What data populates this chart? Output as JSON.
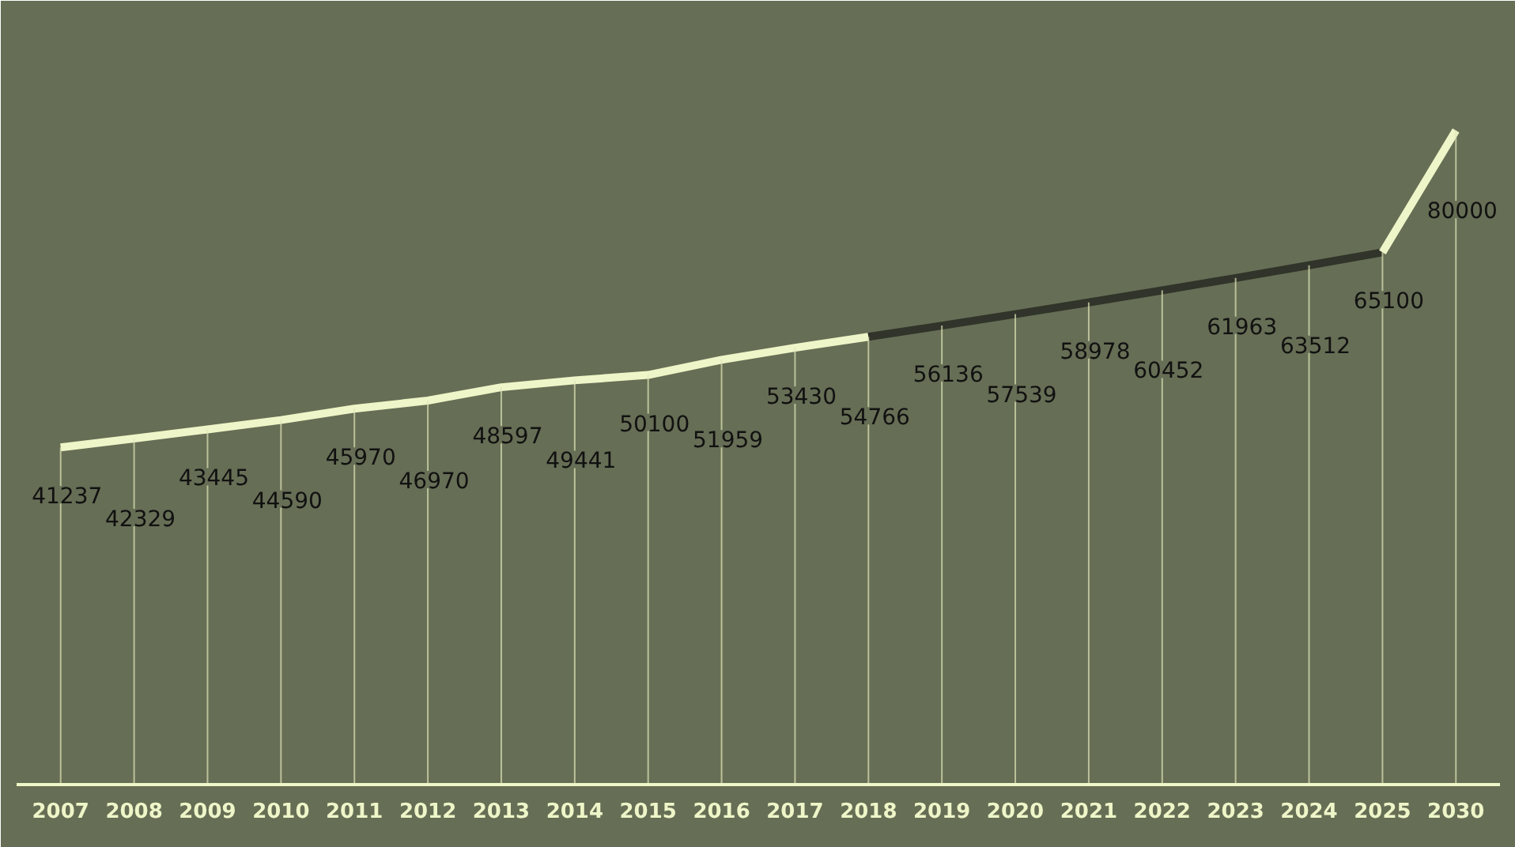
{
  "chart_data": {
    "type": "line",
    "categories": [
      "2007",
      "2008",
      "2009",
      "2010",
      "2011",
      "2012",
      "2013",
      "2014",
      "2015",
      "2016",
      "2017",
      "2018",
      "2019",
      "2020",
      "2021",
      "2022",
      "2023",
      "2024",
      "2025",
      "2030"
    ],
    "series": [
      {
        "color": "#eef5c8",
        "values": [
          41237,
          42329,
          43445,
          44590,
          45970,
          46970,
          48597,
          49441,
          50100,
          51959,
          53430,
          54766,
          null,
          null,
          null,
          null,
          null,
          null,
          null,
          null
        ],
        "value_labels": [
          "41237",
          "42329",
          "43445",
          "44590",
          "45970",
          "46970",
          "48597",
          "49441",
          "50100",
          "51959",
          "53430",
          "54766",
          null,
          null,
          null,
          null,
          null,
          null,
          null,
          null
        ]
      },
      {
        "color": "#30342a",
        "values": [
          null,
          null,
          null,
          null,
          null,
          null,
          null,
          null,
          null,
          null,
          null,
          54766,
          56136,
          57539,
          58978,
          60452,
          61963,
          63512,
          65100,
          null
        ],
        "value_labels": [
          null,
          null,
          null,
          null,
          null,
          null,
          null,
          null,
          null,
          null,
          null,
          null,
          "56136",
          "57539",
          "58978",
          "60452",
          "61963",
          "63512",
          "65100",
          null
        ]
      },
      {
        "color": "#eef5c8",
        "values": [
          null,
          null,
          null,
          null,
          null,
          null,
          null,
          null,
          null,
          null,
          null,
          null,
          null,
          null,
          null,
          null,
          null,
          null,
          65100,
          80000
        ],
        "value_labels": [
          null,
          null,
          null,
          null,
          null,
          null,
          null,
          null,
          null,
          null,
          null,
          null,
          null,
          null,
          null,
          null,
          null,
          null,
          null,
          "80000"
        ]
      }
    ],
    "grid": "x",
    "marker": "none",
    "line_style": "solid"
  }
}
